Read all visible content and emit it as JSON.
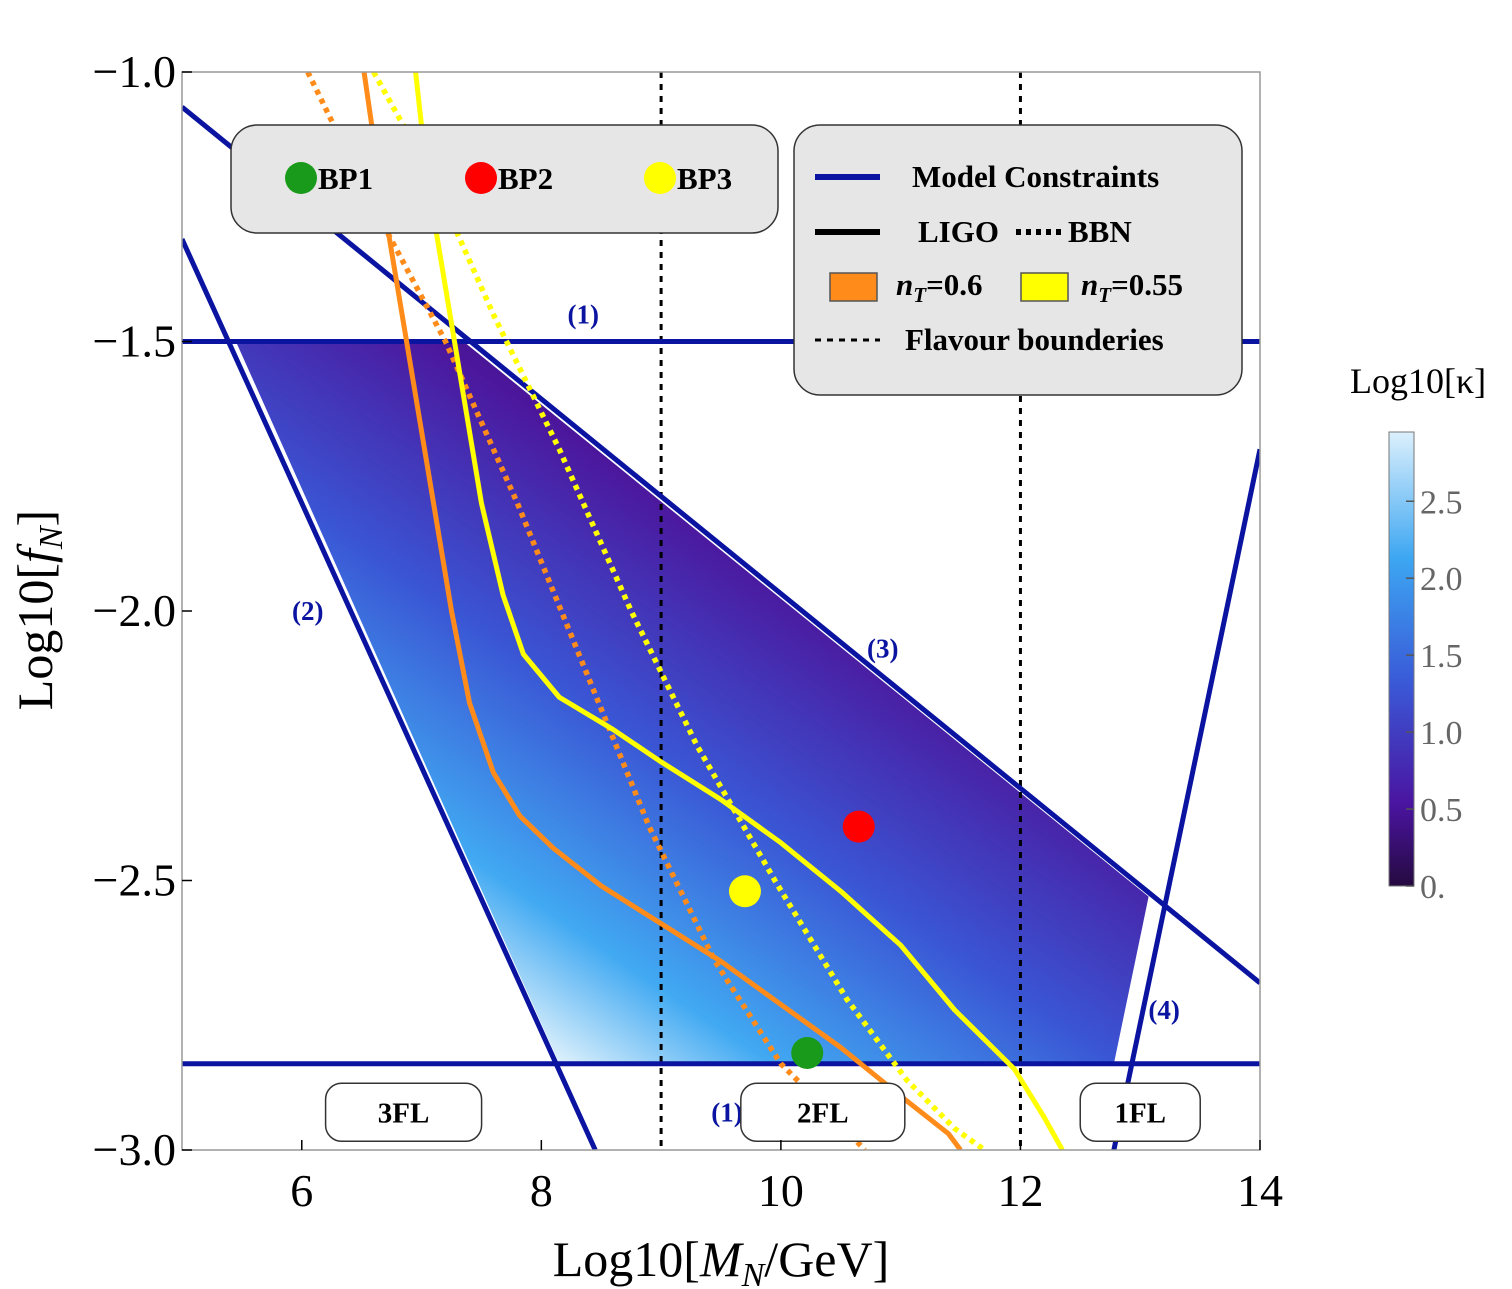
{
  "chart_data": {
    "type": "line",
    "xlabel_prefix": "Log10[",
    "xlabel_var": "M",
    "xlabel_sub": "N",
    "xlabel_suffix": "/GeV]",
    "ylabel_prefix": "Log10[",
    "ylabel_var": "f",
    "ylabel_sub": "N",
    "ylabel_suffix": "]",
    "xlim": [
      5,
      14
    ],
    "ylim": [
      -3.0,
      -1.0
    ],
    "x_ticks": [
      6,
      8,
      10,
      12,
      14
    ],
    "x_tick_labels": [
      "6",
      "8",
      "10",
      "12",
      "14"
    ],
    "y_ticks": [
      -1.0,
      -1.5,
      -2.0,
      -2.5,
      -3.0
    ],
    "y_tick_labels": [
      "−1.0",
      "−1.5",
      "−2.0",
      "−2.5",
      "−3.0"
    ],
    "grid": false,
    "colorbar": {
      "title": "Log10[κ]",
      "range": [
        0,
        2.95
      ],
      "ticks": [
        0,
        0.5,
        1.0,
        1.5,
        2.0,
        2.5
      ],
      "tick_labels": [
        "0.",
        "0.5",
        "1.0",
        "1.5",
        "2.0",
        "2.5"
      ],
      "colors": [
        "#250a40",
        "#4a14a0",
        "#3a5ad8",
        "#3ca6f2",
        "#dcf0fc"
      ]
    },
    "model_constraints": [
      {
        "label": "(1)",
        "points": [
          [
            5,
            -1.5
          ],
          [
            14,
            -1.5
          ]
        ]
      },
      {
        "label": "(1)",
        "points": [
          [
            5,
            -2.84
          ],
          [
            14,
            -2.84
          ]
        ]
      },
      {
        "label": "(2)",
        "points": [
          [
            5,
            -1.31
          ],
          [
            8.45,
            -3.0
          ]
        ]
      },
      {
        "label": "(3)",
        "points": [
          [
            5,
            -1.065
          ],
          [
            14,
            -2.69
          ]
        ]
      },
      {
        "label": "(4)",
        "points": [
          [
            12.78,
            -3.0
          ],
          [
            14,
            -1.7
          ]
        ]
      }
    ],
    "region_labels": [
      {
        "text": "(1)",
        "x": 8.35,
        "y": -1.45
      },
      {
        "text": "(2)",
        "x": 6.05,
        "y": -2.0
      },
      {
        "text": "(3)",
        "x": 10.85,
        "y": -2.07
      },
      {
        "text": "(4)",
        "x": 13.2,
        "y": -2.74
      },
      {
        "text": "(1)",
        "x": 9.55,
        "y": -2.93
      }
    ],
    "shaded_region": [
      [
        5.45,
        -1.5
      ],
      [
        7.35,
        -1.5
      ],
      [
        13.07,
        -2.53
      ],
      [
        12.78,
        -2.84
      ],
      [
        8.15,
        -2.84
      ]
    ],
    "flavour_boundaries": [
      9,
      12
    ],
    "flavour_labels": [
      {
        "text": "3FL",
        "x": 6.85,
        "y": -2.93
      },
      {
        "text": "2FL",
        "x": 10.35,
        "y": -2.93
      },
      {
        "text": "1FL",
        "x": 13.0,
        "y": -2.93
      }
    ],
    "series": [
      {
        "name": "n_T=0.6",
        "kind": "LIGO",
        "color": "#ff8c1a",
        "points": [
          [
            6.52,
            -1.0
          ],
          [
            6.65,
            -1.2
          ],
          [
            6.8,
            -1.4
          ],
          [
            6.95,
            -1.6
          ],
          [
            7.1,
            -1.8
          ],
          [
            7.25,
            -2.0
          ],
          [
            7.4,
            -2.17
          ],
          [
            7.6,
            -2.3
          ],
          [
            7.82,
            -2.38
          ],
          [
            8.1,
            -2.44
          ],
          [
            8.5,
            -2.51
          ],
          [
            9.0,
            -2.58
          ],
          [
            9.5,
            -2.65
          ],
          [
            10.0,
            -2.73
          ],
          [
            10.5,
            -2.81
          ],
          [
            11.0,
            -2.9
          ],
          [
            11.4,
            -2.97
          ],
          [
            11.5,
            -3.0
          ]
        ]
      },
      {
        "name": "n_T=0.6",
        "kind": "BBN",
        "color": "#ff8c1a",
        "points": [
          [
            6.05,
            -1.0
          ],
          [
            6.6,
            -1.25
          ],
          [
            7.2,
            -1.5
          ],
          [
            7.8,
            -1.8
          ],
          [
            8.35,
            -2.1
          ],
          [
            8.9,
            -2.4
          ],
          [
            9.45,
            -2.65
          ],
          [
            10.0,
            -2.84
          ],
          [
            10.45,
            -2.94
          ],
          [
            10.7,
            -3.0
          ]
        ]
      },
      {
        "name": "n_T=0.55",
        "kind": "LIGO",
        "color": "#ffff00",
        "points": [
          [
            6.95,
            -1.0
          ],
          [
            7.05,
            -1.2
          ],
          [
            7.2,
            -1.4
          ],
          [
            7.35,
            -1.6
          ],
          [
            7.5,
            -1.8
          ],
          [
            7.68,
            -1.97
          ],
          [
            7.85,
            -2.08
          ],
          [
            8.15,
            -2.16
          ],
          [
            8.6,
            -2.22
          ],
          [
            9.0,
            -2.28
          ],
          [
            9.5,
            -2.35
          ],
          [
            10.0,
            -2.43
          ],
          [
            10.5,
            -2.52
          ],
          [
            11.0,
            -2.62
          ],
          [
            11.45,
            -2.74
          ],
          [
            11.95,
            -2.85
          ],
          [
            12.2,
            -2.94
          ],
          [
            12.35,
            -3.0
          ]
        ]
      },
      {
        "name": "n_T=0.55",
        "kind": "BBN",
        "color": "#ffff00",
        "points": [
          [
            6.6,
            -1.0
          ],
          [
            7.1,
            -1.2
          ],
          [
            7.6,
            -1.45
          ],
          [
            8.15,
            -1.7
          ],
          [
            8.75,
            -2.0
          ],
          [
            9.3,
            -2.25
          ],
          [
            9.95,
            -2.5
          ],
          [
            10.55,
            -2.72
          ],
          [
            11.05,
            -2.87
          ],
          [
            11.45,
            -2.96
          ],
          [
            11.7,
            -3.0
          ]
        ]
      }
    ],
    "benchmarks": [
      {
        "name": "BP1",
        "x": 10.22,
        "y": -2.82,
        "color": "#1a9a1a"
      },
      {
        "name": "BP2",
        "x": 10.65,
        "y": -2.4,
        "color": "#ff0000"
      },
      {
        "name": "BP3",
        "x": 9.7,
        "y": -2.52,
        "color": "#ffff00"
      }
    ],
    "legend": {
      "model_constraints": "Model Constraints",
      "ligo": "LIGO",
      "bbn": "BBN",
      "nT_06_prefix": "n",
      "nT_06_sub": "T",
      "nT_06_value": "=0.6",
      "nT_055_prefix": "n",
      "nT_055_sub": "T",
      "nT_055_value": "=0.55",
      "flavour": "Flavour bounderies",
      "bp1": "BP1",
      "bp2": "BP2",
      "bp3": "BP3",
      "placement": "top"
    }
  }
}
